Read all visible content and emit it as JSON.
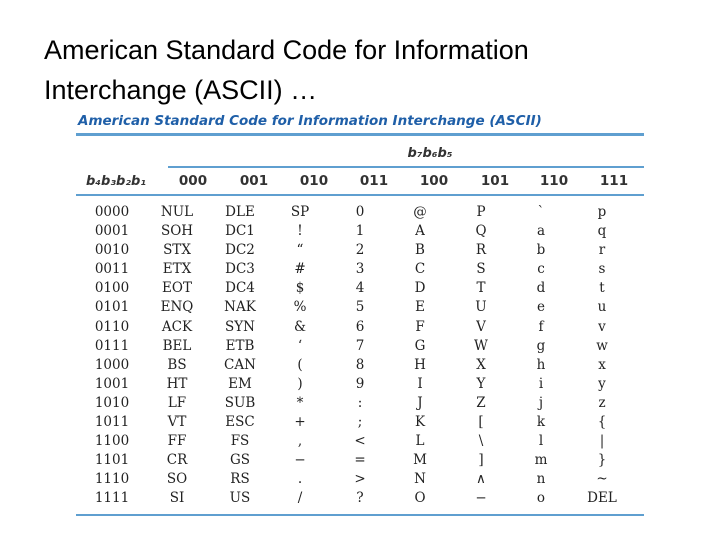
{
  "slide": {
    "title_line1": "American Standard Code for Information",
    "title_line2": "Interchange (ASCII) …"
  },
  "table": {
    "caption": "American Standard Code for Information Interchange (ASCII)",
    "group_header": "b₇b₆b₅",
    "row_header": "b₄b₃b₂b₁",
    "columns": [
      "000",
      "001",
      "010",
      "011",
      "100",
      "101",
      "110",
      "111"
    ],
    "rows": [
      {
        "bits": "0000",
        "cells": [
          "NUL",
          "DLE",
          "SP",
          "0",
          "@",
          "P",
          "`",
          "p"
        ]
      },
      {
        "bits": "0001",
        "cells": [
          "SOH",
          "DC1",
          "!",
          "1",
          "A",
          "Q",
          "a",
          "q"
        ]
      },
      {
        "bits": "0010",
        "cells": [
          "STX",
          "DC2",
          "“",
          "2",
          "B",
          "R",
          "b",
          "r"
        ]
      },
      {
        "bits": "0011",
        "cells": [
          "ETX",
          "DC3",
          "#",
          "3",
          "C",
          "S",
          "c",
          "s"
        ]
      },
      {
        "bits": "0100",
        "cells": [
          "EOT",
          "DC4",
          "$",
          "4",
          "D",
          "T",
          "d",
          "t"
        ]
      },
      {
        "bits": "0101",
        "cells": [
          "ENQ",
          "NAK",
          "%",
          "5",
          "E",
          "U",
          "e",
          "u"
        ]
      },
      {
        "bits": "0110",
        "cells": [
          "ACK",
          "SYN",
          "&",
          "6",
          "F",
          "V",
          "f",
          "v"
        ]
      },
      {
        "bits": "0111",
        "cells": [
          "BEL",
          "ETB",
          "‘",
          "7",
          "G",
          "W",
          "g",
          "w"
        ]
      },
      {
        "bits": "1000",
        "cells": [
          "BS",
          "CAN",
          "(",
          "8",
          "H",
          "X",
          "h",
          "x"
        ]
      },
      {
        "bits": "1001",
        "cells": [
          "HT",
          "EM",
          ")",
          "9",
          "I",
          "Y",
          "i",
          "y"
        ]
      },
      {
        "bits": "1010",
        "cells": [
          "LF",
          "SUB",
          "*",
          ":",
          "J",
          "Z",
          "j",
          "z"
        ]
      },
      {
        "bits": "1011",
        "cells": [
          "VT",
          "ESC",
          "+",
          ";",
          "K",
          "[",
          "k",
          "{"
        ]
      },
      {
        "bits": "1100",
        "cells": [
          "FF",
          "FS",
          ",",
          "<",
          "L",
          "\\",
          "l",
          "|"
        ]
      },
      {
        "bits": "1101",
        "cells": [
          "CR",
          "GS",
          "−",
          "=",
          "M",
          "]",
          "m",
          "}"
        ]
      },
      {
        "bits": "1110",
        "cells": [
          "SO",
          "RS",
          ".",
          ">",
          "N",
          "∧",
          "n",
          "~"
        ]
      },
      {
        "bits": "1111",
        "cells": [
          "SI",
          "US",
          "/",
          "?",
          "O",
          "−",
          "o",
          "DEL"
        ]
      }
    ]
  }
}
